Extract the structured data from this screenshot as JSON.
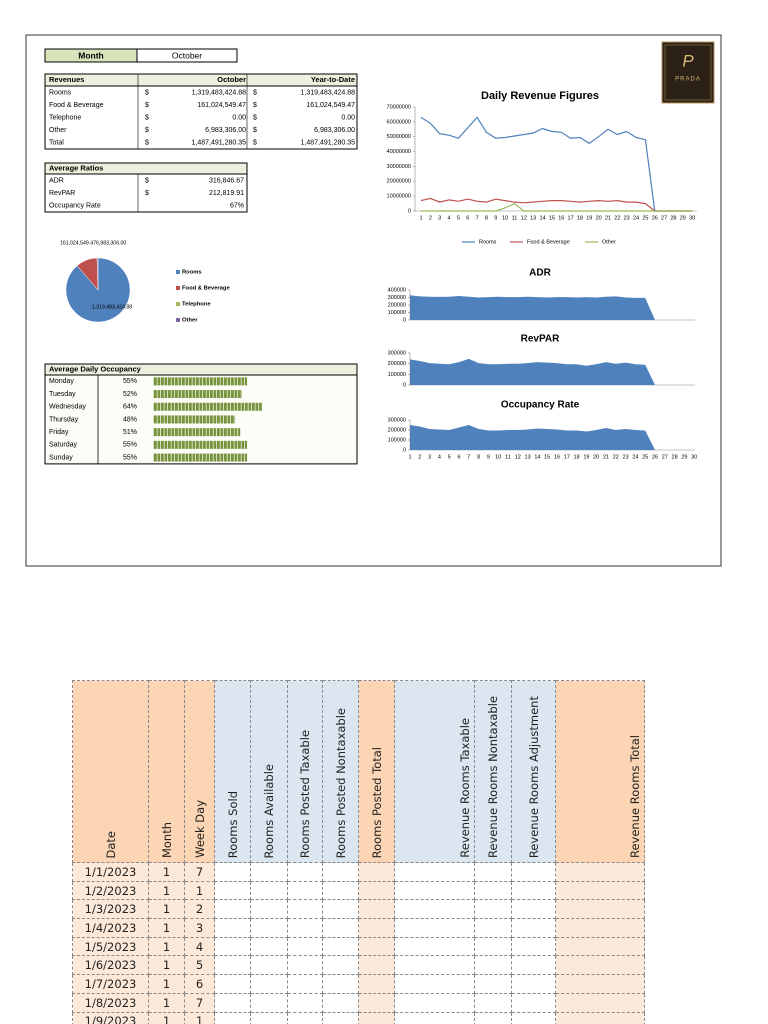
{
  "month_box": {
    "label": "Month",
    "value": "October"
  },
  "revenues": {
    "header": [
      "Revenues",
      "October",
      "Year-to-Date"
    ],
    "rows": [
      [
        "Rooms",
        "$",
        "1,319,483,424.88",
        "$",
        "1,319,483,424.88"
      ],
      [
        "Food & Beverage",
        "$",
        "161,024,549.47",
        "$",
        "161,024,549.47"
      ],
      [
        "Telephone",
        "$",
        "0.00",
        "$",
        "0.00"
      ],
      [
        "Other",
        "$",
        "6,983,306.00",
        "$",
        "6,983,306.00"
      ],
      [
        "Total",
        "$",
        "1,487,491,280.35",
        "$",
        "1,487,491,280.35"
      ]
    ]
  },
  "ratios": {
    "header": "Average Ratios",
    "rows": [
      [
        "ADR",
        "$",
        "316,846.67"
      ],
      [
        "RevPAR",
        "$",
        "212,819.91"
      ],
      [
        "Occupancy Rate",
        "67%"
      ]
    ]
  },
  "logo": {
    "monogram": "P",
    "name": "PRADA"
  },
  "chart_data": [
    {
      "type": "line",
      "title": "Daily Revenue Figures",
      "categories": [
        1,
        2,
        3,
        4,
        5,
        6,
        7,
        8,
        9,
        10,
        11,
        12,
        13,
        14,
        15,
        16,
        17,
        18,
        19,
        20,
        21,
        22,
        23,
        24,
        25,
        26,
        27,
        28,
        29,
        30
      ],
      "ylim": [
        0,
        70000000
      ],
      "yticks": [
        0,
        10000000,
        20000000,
        30000000,
        40000000,
        50000000,
        60000000,
        70000000
      ],
      "series": [
        {
          "name": "Rooms",
          "color": "#4f81bd",
          "values": [
            63000000,
            59000000,
            52000000,
            51000000,
            49000000,
            56000000,
            63000000,
            53000000,
            49000000,
            49500000,
            50500000,
            51500000,
            52500000,
            55500000,
            53500000,
            53000000,
            49000000,
            49500000,
            45500000,
            50000000,
            55000000,
            51500000,
            53500000,
            49500000,
            48000000,
            0,
            0,
            0,
            0,
            0
          ]
        },
        {
          "name": "Food & Beverage",
          "color": "#c0504d",
          "values": [
            7000000,
            8500000,
            6000000,
            7500000,
            6500000,
            8000000,
            6500000,
            6000000,
            8000000,
            7000000,
            6000000,
            5500000,
            6000000,
            6500000,
            7000000,
            7000000,
            6500000,
            6000000,
            6500000,
            7000000,
            6500000,
            7000000,
            6000000,
            6000000,
            5000000,
            0,
            0,
            0,
            0,
            0
          ]
        },
        {
          "name": "Other",
          "color": "#9bbb59",
          "values": [
            0,
            0,
            0,
            0,
            0,
            0,
            0,
            0,
            0,
            2000000,
            5000000,
            0,
            0,
            0,
            0,
            0,
            0,
            0,
            0,
            0,
            0,
            0,
            0,
            0,
            0,
            0,
            0,
            0,
            0,
            0
          ]
        }
      ]
    },
    {
      "type": "area",
      "title": "ADR",
      "color": "#4f81bd",
      "ylim": [
        0,
        400000
      ],
      "yticks": [
        0,
        100000,
        200000,
        300000,
        400000
      ],
      "values": [
        330000,
        315000,
        310000,
        308000,
        310000,
        320000,
        310000,
        300000,
        305000,
        310000,
        305000,
        305000,
        310000,
        305000,
        300000,
        305000,
        305000,
        300000,
        305000,
        300000,
        310000,
        315000,
        300000,
        295000,
        295000,
        0,
        0,
        0,
        0,
        0
      ]
    },
    {
      "type": "area",
      "title": "RevPAR",
      "color": "#4f81bd",
      "ylim": [
        0,
        300000
      ],
      "yticks": [
        0,
        100000,
        200000,
        300000
      ],
      "values": [
        240000,
        225000,
        205000,
        200000,
        195000,
        215000,
        245000,
        205000,
        195000,
        195000,
        200000,
        200000,
        205000,
        215000,
        210000,
        205000,
        195000,
        195000,
        180000,
        195000,
        215000,
        200000,
        210000,
        195000,
        190000,
        0,
        0,
        0,
        0,
        0
      ]
    },
    {
      "type": "area",
      "title": "Occupancy Rate",
      "color": "#4f81bd",
      "categories": [
        1,
        2,
        3,
        4,
        5,
        6,
        7,
        8,
        9,
        10,
        11,
        12,
        13,
        14,
        15,
        16,
        17,
        18,
        19,
        20,
        21,
        22,
        23,
        24,
        25,
        26,
        27,
        28,
        29,
        30
      ],
      "ylim": [
        0,
        300000
      ],
      "yticks": [
        0,
        100000,
        200000,
        300000
      ],
      "values": [
        250000,
        235000,
        210000,
        205000,
        200000,
        225000,
        250000,
        210000,
        195000,
        195000,
        200000,
        200000,
        205000,
        215000,
        210000,
        205000,
        195000,
        195000,
        185000,
        200000,
        220000,
        200000,
        210000,
        200000,
        195000,
        0,
        0,
        0,
        0,
        0
      ]
    },
    {
      "type": "pie",
      "categories": [
        "Rooms",
        "Food & Beverage",
        "Telephone",
        "Other"
      ],
      "values": [
        1319483424.88,
        161024549.47,
        0,
        6983306.0
      ],
      "value_labels": [
        "1,319,483,424.88",
        "161,024,549.47",
        null,
        "6,983,306.00"
      ],
      "colors": [
        "#4f81bd",
        "#c0504d",
        "#9bbb59",
        "#8064a2"
      ]
    },
    {
      "type": "bar",
      "title": "Average Daily Occupancy",
      "categories": [
        "Monday",
        "Tuesday",
        "Wednesday",
        "Thursday",
        "Friday",
        "Saturday",
        "Sunday"
      ],
      "values": [
        55,
        52,
        64,
        48,
        51,
        55,
        55
      ],
      "value_labels": [
        "55%",
        "52%",
        "64%",
        "48%",
        "51%",
        "55%",
        "55%"
      ],
      "color": "#77933c"
    }
  ],
  "sheet": {
    "headers": [
      "Date",
      "Month",
      "Week Day",
      "Rooms Sold",
      "Rooms Available",
      "Rooms Posted Taxable",
      "Rooms Posted Nontaxable",
      "Rooms Posted Total",
      "Revenue Rooms Taxable",
      "Revenue Rooms Nontaxable",
      "Revenue Rooms Adjustment",
      "Revenue Rooms Total"
    ],
    "rows": [
      [
        "1/1/2023",
        1,
        7
      ],
      [
        "1/2/2023",
        1,
        1
      ],
      [
        "1/3/2023",
        1,
        2
      ],
      [
        "1/4/2023",
        1,
        3
      ],
      [
        "1/5/2023",
        1,
        4
      ],
      [
        "1/6/2023",
        1,
        5
      ],
      [
        "1/7/2023",
        1,
        6
      ],
      [
        "1/8/2023",
        1,
        7
      ],
      [
        "1/9/2023",
        1,
        1
      ]
    ]
  }
}
